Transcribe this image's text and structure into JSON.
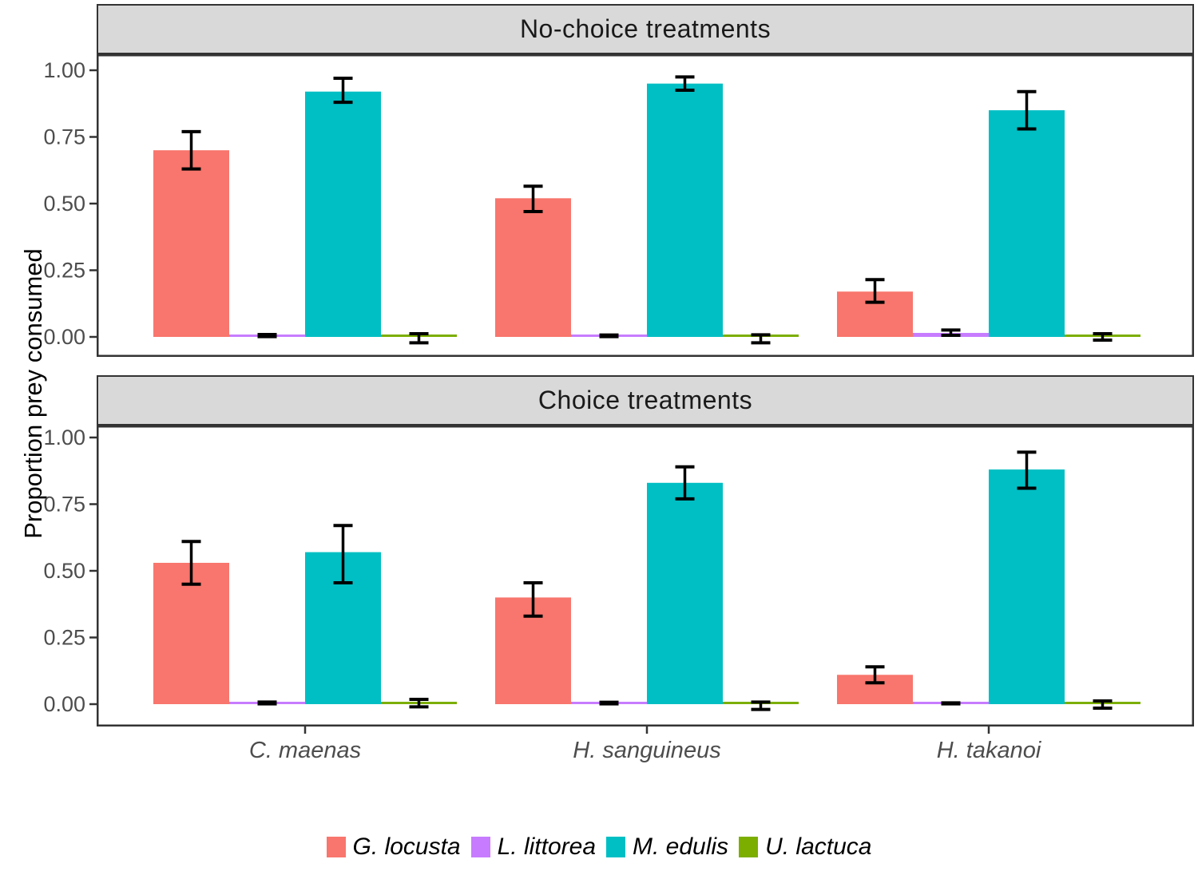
{
  "chart_data": {
    "type": "bar",
    "title": "",
    "ylabel": "Proportion prey consumed",
    "xlabel": "",
    "ylim": [
      0,
      1.05
    ],
    "grid": false,
    "legend_position": "bottom",
    "y_ticks": [
      0,
      0.25,
      0.5,
      0.75,
      1
    ],
    "y_tick_labels": [
      "0.00",
      "0.25",
      "0.50",
      "0.75",
      "1.00"
    ],
    "categories": [
      "C. maenas",
      "H. sanguineus",
      "H. takanoi"
    ],
    "series_names": [
      "G. locusta",
      "L. littorea",
      "M. edulis",
      "U. lactuca"
    ],
    "series_colors": [
      "#F8766D",
      "#C77CFF",
      "#00BFC4",
      "#7CAE00"
    ],
    "facets": [
      {
        "label": "No-choice treatments",
        "series": [
          {
            "name": "G. locusta",
            "values": [
              0.7,
              0.52,
              0.17
            ],
            "err_low": [
              0.63,
              0.47,
              0.13
            ],
            "err_high": [
              0.77,
              0.565,
              0.215
            ]
          },
          {
            "name": "L. littorea",
            "values": [
              0.005,
              0.004,
              0.015
            ],
            "err_low": [
              0.001,
              0.001,
              0.006
            ],
            "err_high": [
              0.009,
              0.007,
              0.026
            ]
          },
          {
            "name": "M. edulis",
            "values": [
              0.92,
              0.95,
              0.85
            ],
            "err_low": [
              0.88,
              0.925,
              0.78
            ],
            "err_high": [
              0.97,
              0.975,
              0.92
            ]
          },
          {
            "name": "U. lactuca",
            "values": [
              0.004,
              0.004,
              0.004
            ],
            "err_low": [
              -0.022,
              -0.022,
              -0.012
            ],
            "err_high": [
              0.012,
              0.008,
              0.012
            ]
          }
        ]
      },
      {
        "label": "Choice treatments",
        "series": [
          {
            "name": "G. locusta",
            "values": [
              0.53,
              0.4,
              0.11
            ],
            "err_low": [
              0.45,
              0.33,
              0.08
            ],
            "err_high": [
              0.61,
              0.455,
              0.14
            ]
          },
          {
            "name": "L. littorea",
            "values": [
              0.004,
              0.004,
              0.003
            ],
            "err_low": [
              0.001,
              0.001,
              0.001
            ],
            "err_high": [
              0.008,
              0.007,
              0.005
            ]
          },
          {
            "name": "M. edulis",
            "values": [
              0.57,
              0.83,
              0.88
            ],
            "err_low": [
              0.455,
              0.77,
              0.81
            ],
            "err_high": [
              0.67,
              0.89,
              0.945
            ]
          },
          {
            "name": "U. lactuca",
            "values": [
              0.005,
              0.004,
              0.004
            ],
            "err_low": [
              -0.01,
              -0.02,
              -0.015
            ],
            "err_high": [
              0.018,
              0.008,
              0.012
            ]
          }
        ]
      }
    ]
  }
}
